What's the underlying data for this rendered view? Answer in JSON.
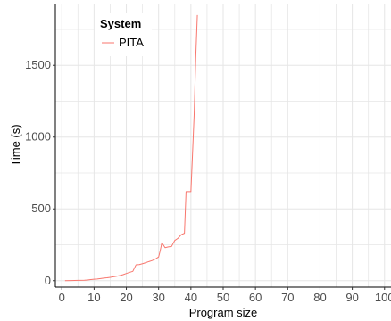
{
  "chart_data": {
    "type": "line",
    "xlabel": "Program size",
    "ylabel": "Time (s)",
    "xlim": [
      -2,
      102
    ],
    "ylim": [
      -45,
      1930
    ],
    "x_ticks": [
      0,
      10,
      20,
      30,
      40,
      50,
      60,
      70,
      80,
      90,
      100
    ],
    "y_ticks": [
      0,
      500,
      1000,
      1500
    ],
    "grid": true,
    "legend": {
      "title": "System",
      "position": "top-left"
    },
    "series": [
      {
        "name": "PITA",
        "color": "#f8766d",
        "x": [
          1,
          3,
          5,
          7,
          8,
          9,
          10,
          11,
          12,
          13,
          14,
          15,
          16,
          17,
          18,
          19,
          20,
          21,
          22,
          23,
          24,
          25,
          26,
          27,
          28,
          29,
          30,
          30.5,
          31,
          32,
          33,
          34,
          35,
          36,
          37,
          38,
          38.5,
          39,
          40,
          40.5,
          41,
          41.5,
          42
        ],
        "y": [
          0,
          1,
          2,
          3,
          5,
          8,
          10,
          12,
          15,
          18,
          20,
          23,
          27,
          31,
          36,
          42,
          50,
          58,
          65,
          110,
          112,
          118,
          125,
          133,
          140,
          150,
          165,
          210,
          265,
          230,
          235,
          238,
          280,
          295,
          320,
          330,
          620,
          620,
          620,
          880,
          1150,
          1550,
          1850
        ]
      }
    ]
  }
}
